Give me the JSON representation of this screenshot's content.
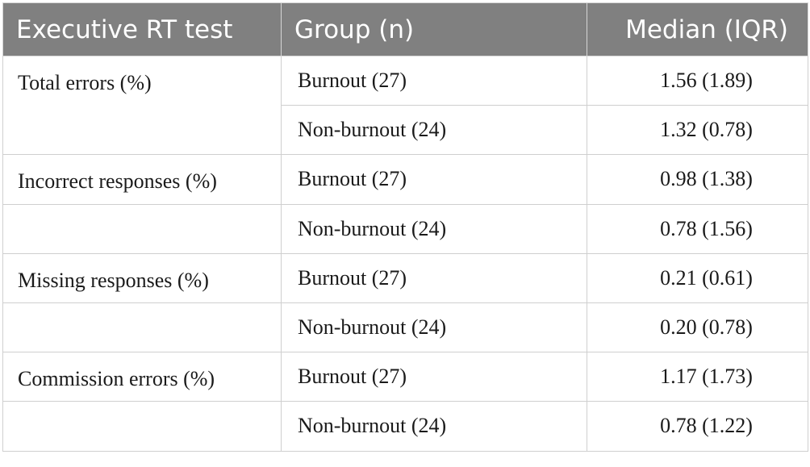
{
  "table": {
    "headers": [
      "Executive RT test",
      "Group (n)",
      "Median (IQR)"
    ],
    "rows": [
      {
        "test": "Total errors (%)",
        "group": "Burnout (27)",
        "median_iqr": "1.56 (1.89)"
      },
      {
        "test": "",
        "group": "Non-burnout (24)",
        "median_iqr": "1.32 (0.78)"
      },
      {
        "test": "Incorrect responses (%)",
        "group": "Burnout (27)",
        "median_iqr": "0.98 (1.38)"
      },
      {
        "test": "",
        "group": "Non-burnout (24)",
        "median_iqr": "0.78 (1.56)"
      },
      {
        "test": "Missing responses (%)",
        "group": "Burnout (27)",
        "median_iqr": "0.21 (0.61)"
      },
      {
        "test": "",
        "group": "Non-burnout (24)",
        "median_iqr": "0.20 (0.78)"
      },
      {
        "test": "Commission errors (%)",
        "group": "Burnout (27)",
        "median_iqr": "1.17 (1.73)"
      },
      {
        "test": "",
        "group": "Non-burnout (24)",
        "median_iqr": "0.78 (1.22)"
      }
    ]
  }
}
